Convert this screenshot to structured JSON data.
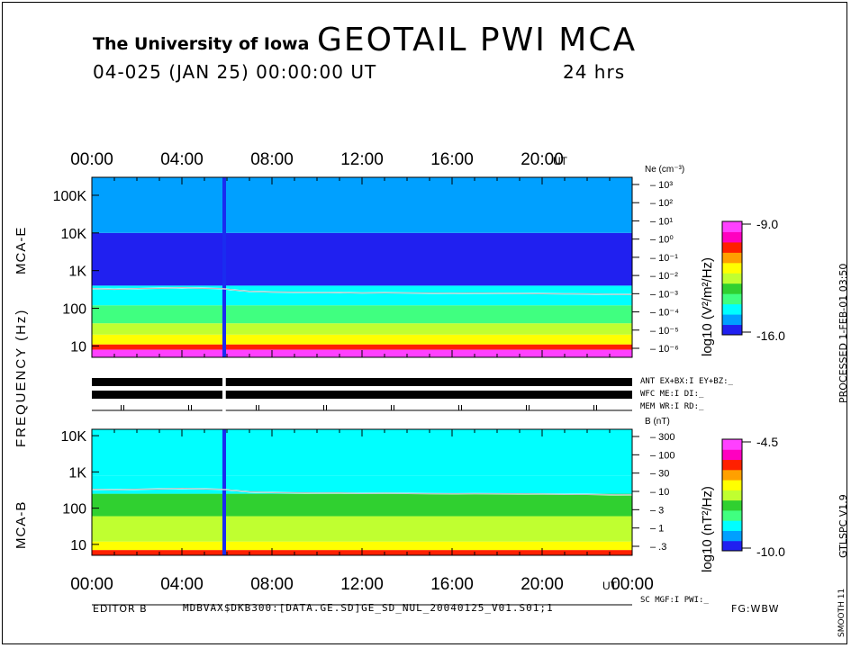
{
  "header": {
    "institution": "The University of Iowa",
    "title": "GEOTAIL  PWI  MCA",
    "date_line": "04-025 (JAN 25) 00:00:00 UT",
    "duration": "24 hrs"
  },
  "footer": {
    "editor": "EDITOR B",
    "file": "MDBVAX$DKB300:[DATA.GE.SD]GE_SD_NUL_20040125_V01.S01;1",
    "fg": "FG:WBW"
  },
  "side_labels": {
    "processed": "PROCESSED  1-FEB-01  03:50",
    "version": "GTLSPC  V1.9",
    "smooth": "SMOOTH 11"
  },
  "status_labels": {
    "ant": "ANT EX+BX:I  EY+BZ:_",
    "wfc": "WFC ME:I     DI:_",
    "mem": "MEM WR:I     RD:_",
    "sc": "SC MGF:I     PWI:_"
  },
  "colorbars": {
    "e": {
      "label": "log10 (V²/m²/Hz)",
      "max": "-9.0",
      "min": "-16.0"
    },
    "b": {
      "label": "log10 (nT²/Hz)",
      "max": "-4.5",
      "min": "-10.0"
    },
    "colors": [
      "#2020f0",
      "#00a0ff",
      "#00ffff",
      "#40ff80",
      "#30d030",
      "#c0ff30",
      "#ffff00",
      "#ffa000",
      "#ff2000",
      "#ff00c0",
      "#ff40ff"
    ]
  },
  "chart_data": [
    {
      "type": "heatmap",
      "name": "MCA-E",
      "ylabel": "MCA-E",
      "shared_ylabel": "FREQUENCY (Hz)",
      "x_ticks": [
        "00:00",
        "04:00",
        "08:00",
        "12:00",
        "16:00",
        "20:00"
      ],
      "x_unit": "UT",
      "xlim_hours": [
        0,
        24
      ],
      "y_ticks": [
        "10",
        "100",
        "1K",
        "10K",
        "100K"
      ],
      "ylim_hz": [
        5,
        300000
      ],
      "y_scale": "log",
      "right_axis": {
        "label": "Ne (cm⁻³)",
        "ticks": [
          "10³",
          "10²",
          "10¹",
          "10⁰",
          "10⁻¹",
          "10⁻²",
          "10⁻³",
          "10⁻⁴",
          "10⁻⁵",
          "10⁻⁶"
        ]
      },
      "data_gap_hours": [
        5.8,
        5.95
      ],
      "white_line_hz": [
        [
          0.0,
          330
        ],
        [
          1.0,
          320
        ],
        [
          2.0,
          330
        ],
        [
          3.0,
          340
        ],
        [
          4.0,
          350
        ],
        [
          5.0,
          340
        ],
        [
          5.8,
          330
        ],
        [
          6.0,
          320
        ],
        [
          6.5,
          300
        ],
        [
          7.0,
          280
        ],
        [
          8.0,
          270
        ],
        [
          9.0,
          265
        ],
        [
          10.0,
          260
        ],
        [
          11.0,
          262
        ],
        [
          12.0,
          255
        ],
        [
          13.0,
          258
        ],
        [
          14.0,
          255
        ],
        [
          15.0,
          252
        ],
        [
          16.0,
          250
        ],
        [
          17.0,
          252
        ],
        [
          18.0,
          250
        ],
        [
          19.0,
          248
        ],
        [
          20.0,
          245
        ],
        [
          21.0,
          242
        ],
        [
          22.0,
          240
        ],
        [
          23.0,
          235
        ],
        [
          24.0,
          232
        ]
      ],
      "band_levels": [
        {
          "f_lo": 5,
          "f_hi": 8,
          "level": 10
        },
        {
          "f_lo": 8,
          "f_hi": 11,
          "level": 8
        },
        {
          "f_lo": 11,
          "f_hi": 20,
          "level": 6
        },
        {
          "f_lo": 20,
          "f_hi": 40,
          "level": 5
        },
        {
          "f_lo": 40,
          "f_hi": 120,
          "level": 3
        },
        {
          "f_lo": 120,
          "f_hi": 400,
          "level": 2
        },
        {
          "f_lo": 400,
          "f_hi": 10000,
          "level": 0
        },
        {
          "f_lo": 10000,
          "f_hi": 300000,
          "level": 1
        }
      ]
    },
    {
      "type": "heatmap",
      "name": "MCA-B",
      "ylabel": "MCA-B",
      "x_ticks": [
        "00:00",
        "04:00",
        "08:00",
        "12:00",
        "16:00",
        "20:00",
        "00:00"
      ],
      "x_unit": "UT",
      "xlim_hours": [
        0,
        24
      ],
      "y_ticks": [
        "10",
        "100",
        "1K",
        "10K"
      ],
      "ylim_hz": [
        5,
        15000
      ],
      "y_scale": "log",
      "right_axis": {
        "label": "B (nT)",
        "ticks": [
          "300",
          "100",
          "30",
          "10",
          "3",
          "1",
          ".3"
        ]
      },
      "data_gap_hours": [
        5.8,
        5.95
      ],
      "white_line_hz": [
        [
          0.0,
          330
        ],
        [
          1.0,
          320
        ],
        [
          2.0,
          330
        ],
        [
          3.0,
          340
        ],
        [
          4.0,
          350
        ],
        [
          5.0,
          340
        ],
        [
          5.8,
          330
        ],
        [
          6.0,
          320
        ],
        [
          6.5,
          300
        ],
        [
          7.0,
          280
        ],
        [
          8.0,
          270
        ],
        [
          9.0,
          265
        ],
        [
          10.0,
          260
        ],
        [
          11.0,
          262
        ],
        [
          12.0,
          255
        ],
        [
          13.0,
          258
        ],
        [
          14.0,
          255
        ],
        [
          15.0,
          252
        ],
        [
          16.0,
          250
        ],
        [
          17.0,
          252
        ],
        [
          18.0,
          250
        ],
        [
          19.0,
          248
        ],
        [
          20.0,
          245
        ],
        [
          21.0,
          242
        ],
        [
          22.0,
          240
        ],
        [
          23.0,
          235
        ],
        [
          24.0,
          232
        ]
      ],
      "band_levels": [
        {
          "f_lo": 5,
          "f_hi": 7,
          "level": 8
        },
        {
          "f_lo": 7,
          "f_hi": 12,
          "level": 6
        },
        {
          "f_lo": 12,
          "f_hi": 60,
          "level": 5
        },
        {
          "f_lo": 60,
          "f_hi": 250,
          "level": 4
        },
        {
          "f_lo": 250,
          "f_hi": 800,
          "level": 2
        },
        {
          "f_lo": 800,
          "f_hi": 15000,
          "level": 2
        }
      ]
    }
  ]
}
